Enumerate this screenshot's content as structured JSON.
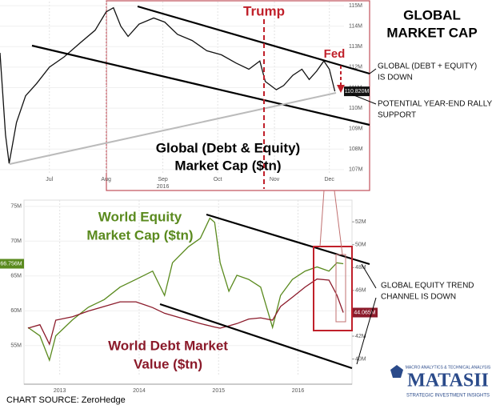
{
  "header": {
    "title": [
      "GLOBAL",
      "MARKET CAP"
    ]
  },
  "notes": {
    "top": [
      "GLOBAL (DEBT + EQUITY)",
      "IS DOWN"
    ],
    "support": [
      "POTENTIAL YEAR-END RALLY",
      "SUPPORT"
    ],
    "channel": [
      "GLOBAL EQUITY TREND",
      "CHANNEL IS DOWN"
    ]
  },
  "source": "CHART SOURCE: ZeroHedge",
  "logo": {
    "top": "MACRO ANALYTICS & TECHNICAL ANALYSIS",
    "name": "MATASII",
    "bottom": "STRATEGIC INVESTMENT INSIGHTS"
  },
  "chart_data": [
    {
      "type": "line",
      "title": [
        "Global (Debt & Equity)",
        "Market Cap ($tn)"
      ],
      "annotations": {
        "trump": "Trump",
        "fed": "Fed"
      },
      "x": [
        0,
        3,
        5,
        9,
        14,
        20,
        27,
        35,
        44,
        52,
        58,
        62,
        66,
        70,
        76,
        84,
        90,
        97,
        105,
        113,
        121,
        129,
        136,
        142,
        145,
        151,
        155,
        160,
        165,
        169,
        173,
        177,
        180,
        183
      ],
      "xlim": [
        0,
        188
      ],
      "xticks": [
        {
          "value": 27,
          "label": "Jul"
        },
        {
          "value": 58,
          "label": "Aug"
        },
        {
          "value": 89,
          "label": "Sep"
        },
        {
          "value": 119,
          "label": "Oct"
        },
        {
          "value": 150,
          "label": "Nov"
        },
        {
          "value": 180,
          "label": "Dec"
        }
      ],
      "xsublabel": {
        "value": 89,
        "label": "2016"
      },
      "ylim": [
        106.8,
        115.2
      ],
      "yticks": [
        {
          "value": 107,
          "label": "107M"
        },
        {
          "value": 108,
          "label": "108M"
        },
        {
          "value": 109,
          "label": "109M"
        },
        {
          "value": 110,
          "label": "110M"
        },
        {
          "value": 111,
          "label": "111M"
        },
        {
          "value": 112,
          "label": "112M"
        },
        {
          "value": 113,
          "label": "113M"
        },
        {
          "value": 114,
          "label": "114M"
        },
        {
          "value": 115,
          "label": "115M"
        }
      ],
      "grid": true,
      "series": [
        {
          "name": "Global (Debt & Equity) Market Cap",
          "color": "#111111",
          "last_label": "110.820M",
          "last_label_side": "right",
          "values": [
            112.7,
            108.7,
            107.3,
            109.3,
            110.6,
            111.2,
            112.0,
            112.5,
            113.2,
            113.8,
            114.7,
            114.9,
            114.0,
            113.5,
            114.1,
            114.4,
            114.2,
            113.6,
            113.3,
            112.8,
            112.6,
            112.2,
            111.9,
            112.3,
            111.3,
            110.9,
            111.1,
            111.6,
            111.9,
            111.4,
            111.8,
            112.3,
            111.9,
            110.82
          ]
        }
      ]
    },
    {
      "type": "line",
      "labels": {
        "equity": [
          "World Equity",
          "Market Cap ($tn)"
        ],
        "debt": [
          "World Debt Market",
          "Value ($tn)"
        ]
      },
      "x": [
        2013.1,
        2013.25,
        2013.37,
        2013.45,
        2013.66,
        2013.86,
        2014.06,
        2014.26,
        2014.46,
        2014.67,
        2014.82,
        2014.92,
        2015.12,
        2015.27,
        2015.39,
        2015.45,
        2015.52,
        2015.63,
        2015.73,
        2015.88,
        2016.03,
        2016.18,
        2016.28,
        2016.43,
        2016.59,
        2016.74,
        2016.89,
        2016.99,
        2017.07
      ],
      "xlim": [
        2013.05,
        2017.18
      ],
      "xticks": [
        {
          "value": 2013.5,
          "label": "2013"
        },
        {
          "value": 2014.5,
          "label": "2014"
        },
        {
          "value": 2015.5,
          "label": "2015"
        },
        {
          "value": 2016.5,
          "label": "2016"
        }
      ],
      "ylim": [
        50.6,
        75.9
      ],
      "yticks": [
        {
          "value": 55,
          "label": "55M"
        },
        {
          "value": 60,
          "label": "60M"
        },
        {
          "value": 65,
          "label": "65M"
        },
        {
          "value": 70,
          "label": "70M"
        },
        {
          "value": 75,
          "label": "75M"
        }
      ],
      "y2lim": [
        38.5,
        53.9
      ],
      "y2ticks": [
        {
          "value": 40,
          "label": "40M"
        },
        {
          "value": 42,
          "label": "42M"
        },
        {
          "value": 44,
          "label": "44M"
        },
        {
          "value": 46,
          "label": "46M"
        },
        {
          "value": 48,
          "label": "48M"
        },
        {
          "value": 50,
          "label": "50M"
        },
        {
          "value": 52,
          "label": "52M"
        }
      ],
      "grid": true,
      "series": [
        {
          "name": "World Equity Market Cap",
          "color": "#5a8a1e",
          "last_label": "66.756M",
          "last_label_side": "left",
          "values": [
            57.6,
            56.4,
            52.9,
            56.4,
            58.7,
            60.5,
            61.6,
            63.4,
            64.5,
            65.7,
            62.2,
            66.9,
            69.2,
            70.4,
            73.3,
            72.7,
            66.9,
            62.8,
            65.1,
            64.5,
            63.4,
            57.6,
            62.2,
            64.5,
            65.7,
            66.3,
            65.7,
            66.9,
            66.756
          ]
        },
        {
          "name": "World Debt Market Value",
          "color": "#8b1a2a",
          "axis": "y2",
          "last_label": "44.065M",
          "last_label_side": "right",
          "values": [
            42.7,
            43.0,
            41.3,
            43.4,
            43.7,
            44.2,
            44.6,
            45.0,
            45.0,
            44.5,
            44.0,
            43.8,
            43.4,
            43.1,
            42.9,
            42.8,
            42.7,
            42.9,
            43.1,
            43.5,
            43.6,
            43.4,
            44.6,
            45.4,
            46.3,
            47.0,
            46.9,
            45.6,
            44.065
          ]
        }
      ]
    }
  ]
}
